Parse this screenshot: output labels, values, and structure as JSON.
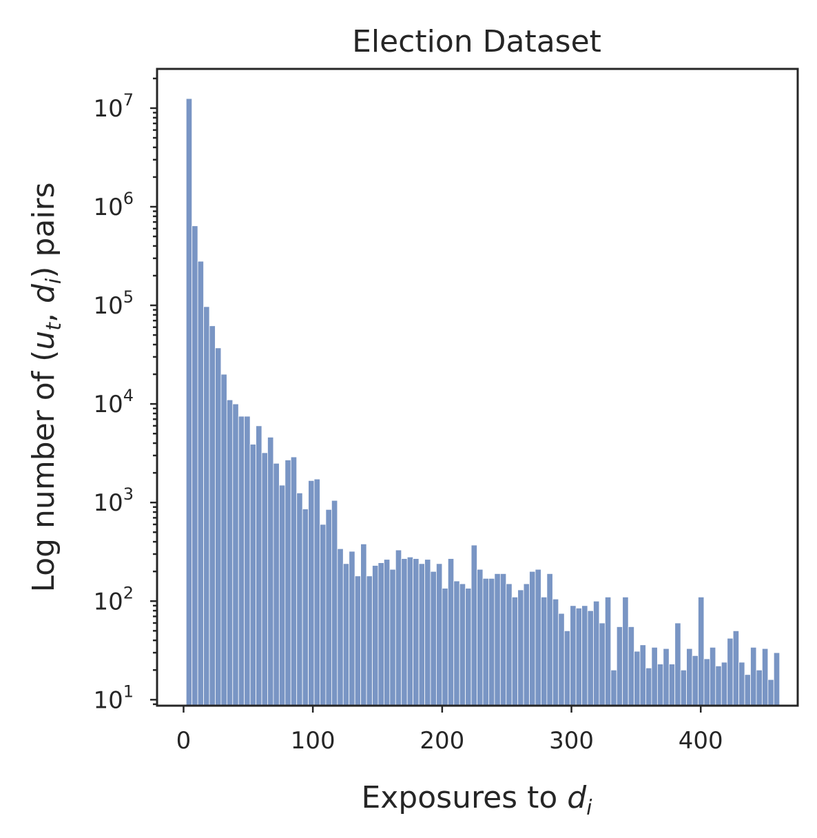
{
  "chart_data": {
    "type": "bar",
    "title": "Election Dataset",
    "xlabel_parts": [
      "Exposures to ",
      "d",
      "i"
    ],
    "ylabel_parts": [
      "Log number of (",
      "u",
      "t",
      ", ",
      "d",
      "i",
      ") pairs"
    ],
    "x_ticks": [
      "0",
      "100",
      "200",
      "300",
      "400"
    ],
    "x_tick_values": [
      0,
      100,
      200,
      300,
      400
    ],
    "y_ticks": [
      {
        "base": "10",
        "exp": "1",
        "value": 10
      },
      {
        "base": "10",
        "exp": "2",
        "value": 100
      },
      {
        "base": "10",
        "exp": "3",
        "value": 1000
      },
      {
        "base": "10",
        "exp": "4",
        "value": 10000
      },
      {
        "base": "10",
        "exp": "5",
        "value": 100000
      },
      {
        "base": "10",
        "exp": "6",
        "value": 1000000
      },
      {
        "base": "10",
        "exp": "7",
        "value": 10000000
      }
    ],
    "y_scale": "log",
    "xlim": [
      -20.5,
      475
    ],
    "ylim": [
      8.7,
      25000000
    ],
    "bin_start": 2,
    "bin_width": 4.5,
    "color": "#4c72b0",
    "values": [
      12500000,
      640000,
      280000,
      97000,
      62000,
      37000,
      20000,
      11000,
      10000,
      7500,
      7500,
      3900,
      6000,
      3200,
      4600,
      2500,
      1500,
      2700,
      2900,
      1250,
      860,
      1670,
      1730,
      600,
      850,
      1050,
      340,
      240,
      320,
      180,
      380,
      180,
      230,
      245,
      265,
      210,
      330,
      270,
      280,
      270,
      240,
      265,
      200,
      240,
      135,
      270,
      160,
      150,
      135,
      370,
      210,
      170,
      170,
      190,
      190,
      150,
      110,
      130,
      150,
      200,
      210,
      110,
      190,
      105,
      75,
      50,
      90,
      85,
      90,
      80,
      100,
      60,
      110,
      20,
      55,
      110,
      55,
      31,
      36,
      21,
      34,
      23,
      33,
      23,
      60,
      20,
      33,
      28,
      110,
      26,
      34,
      22,
      24,
      42,
      50,
      24,
      18,
      34,
      20,
      33,
      16,
      30
    ]
  }
}
